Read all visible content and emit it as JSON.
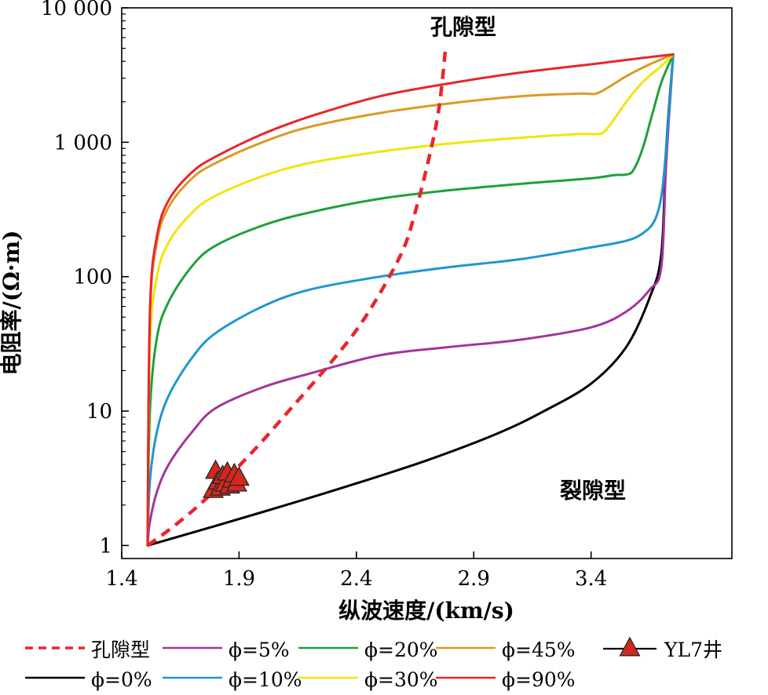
{
  "chart_data": {
    "type": "line",
    "xlabel": "纵波速度/(km/s)",
    "ylabel": "电阻率/(Ω·m)",
    "xlim": [
      1.4,
      4.0
    ],
    "ylim": [
      0.8,
      10000
    ],
    "yscale": "log",
    "xticks": [
      1.4,
      1.9,
      2.4,
      2.9,
      3.4
    ],
    "xtick_labels": [
      "1.4",
      "1.9",
      "2.4",
      "2.9",
      "3.4"
    ],
    "yticks": [
      1,
      10,
      100,
      1000,
      10000
    ],
    "ytick_labels": [
      "1",
      "10",
      "100",
      "1 000",
      "10 000"
    ],
    "annotations": [
      {
        "text": "孔隙型",
        "x": 2.8,
        "y": 6500
      },
      {
        "text": "裂隙型",
        "x": 3.25,
        "y": 3.3
      }
    ],
    "series": [
      {
        "name": "孔隙型",
        "color": "#e8262c",
        "dash": true,
        "x": [
          1.51,
          1.6,
          1.7,
          1.8,
          1.9,
          2.0,
          2.1,
          2.2,
          2.3,
          2.4,
          2.5,
          2.6,
          2.65,
          2.7,
          2.75,
          2.78
        ],
        "y": [
          1,
          1.3,
          1.8,
          2.6,
          3.9,
          6,
          9.5,
          15,
          24,
          40,
          75,
          160,
          300,
          650,
          1700,
          5000
        ]
      },
      {
        "name": "ϕ=0%",
        "color": "#000000",
        "x": [
          1.51,
          1.8,
          2.1,
          2.4,
          2.7,
          3.0,
          3.2,
          3.4,
          3.55,
          3.65,
          3.7,
          3.72,
          3.75
        ],
        "y": [
          1,
          1.4,
          2.0,
          2.9,
          4.3,
          6.8,
          10,
          16,
          30,
          70,
          150,
          900,
          4500
        ]
      },
      {
        "name": "ϕ=5%",
        "color": "#a3359b",
        "x": [
          1.51,
          1.52,
          1.55,
          1.6,
          1.7,
          1.8,
          2.0,
          2.2,
          2.5,
          2.8,
          3.1,
          3.4,
          3.55,
          3.65,
          3.7,
          3.72,
          3.75
        ],
        "y": [
          1,
          1.5,
          2.5,
          4,
          7,
          10.5,
          15,
          19,
          26,
          30,
          34,
          42,
          55,
          80,
          120,
          700,
          4500
        ]
      },
      {
        "name": "ϕ=10%",
        "color": "#1e96d2",
        "x": [
          1.51,
          1.52,
          1.55,
          1.6,
          1.7,
          1.8,
          2.0,
          2.2,
          2.5,
          2.8,
          3.1,
          3.4,
          3.55,
          3.62,
          3.67,
          3.7,
          3.72,
          3.75
        ],
        "y": [
          1,
          3,
          7,
          13,
          25,
          38,
          60,
          80,
          100,
          118,
          135,
          165,
          185,
          210,
          260,
          400,
          900,
          4500
        ]
      },
      {
        "name": "ϕ=20%",
        "color": "#1ea03c",
        "x": [
          1.51,
          1.52,
          1.55,
          1.6,
          1.7,
          1.8,
          2.0,
          2.2,
          2.5,
          2.8,
          3.1,
          3.4,
          3.5,
          3.55,
          3.58,
          3.62,
          3.66,
          3.7,
          3.75
        ],
        "y": [
          1,
          10,
          35,
          65,
          120,
          170,
          240,
          300,
          380,
          440,
          490,
          540,
          570,
          575,
          620,
          900,
          1600,
          2800,
          4500
        ]
      },
      {
        "name": "ϕ=30%",
        "color": "#f0e60a",
        "x": [
          1.51,
          1.52,
          1.55,
          1.6,
          1.7,
          1.8,
          2.0,
          2.2,
          2.5,
          2.8,
          3.1,
          3.35,
          3.43,
          3.46,
          3.5,
          3.55,
          3.62,
          3.7,
          3.75
        ],
        "y": [
          1,
          30,
          100,
          180,
          300,
          400,
          560,
          700,
          850,
          980,
          1080,
          1150,
          1150,
          1220,
          1500,
          2000,
          2800,
          3700,
          4500
        ]
      },
      {
        "name": "ϕ=45%",
        "color": "#d99b23",
        "x": [
          1.51,
          1.52,
          1.55,
          1.6,
          1.7,
          1.8,
          2.0,
          2.2,
          2.5,
          2.8,
          3.1,
          3.35,
          3.42,
          3.48,
          3.55,
          3.65,
          3.75
        ],
        "y": [
          1,
          50,
          180,
          330,
          540,
          700,
          1000,
          1300,
          1650,
          1950,
          2200,
          2300,
          2300,
          2600,
          3100,
          3800,
          4500
        ]
      },
      {
        "name": "ϕ=90%",
        "color": "#e8262c",
        "x": [
          1.51,
          1.52,
          1.55,
          1.6,
          1.7,
          1.8,
          2.0,
          2.2,
          2.5,
          2.8,
          3.1,
          3.4,
          3.6,
          3.75
        ],
        "y": [
          1,
          55,
          200,
          370,
          600,
          780,
          1150,
          1550,
          2200,
          2750,
          3300,
          3800,
          4200,
          4500
        ]
      }
    ],
    "markers": {
      "name": "YL7井",
      "color": "#d7261e",
      "points": [
        {
          "x": 1.79,
          "y": 2.6
        },
        {
          "x": 1.8,
          "y": 3.6
        },
        {
          "x": 1.81,
          "y": 3.0
        },
        {
          "x": 1.82,
          "y": 2.7
        },
        {
          "x": 1.83,
          "y": 3.3
        },
        {
          "x": 1.84,
          "y": 2.9
        },
        {
          "x": 1.85,
          "y": 3.5
        },
        {
          "x": 1.86,
          "y": 2.8
        },
        {
          "x": 1.87,
          "y": 3.1
        },
        {
          "x": 1.88,
          "y": 3.4
        },
        {
          "x": 1.89,
          "y": 2.9
        },
        {
          "x": 1.9,
          "y": 3.2
        }
      ]
    },
    "legend": {
      "placement": "bottom",
      "items": [
        {
          "label": "孔隙型",
          "color": "#e8262c",
          "dash": true
        },
        {
          "label": "ϕ=5%",
          "color": "#a3359b"
        },
        {
          "label": "ϕ=20%",
          "color": "#1ea03c"
        },
        {
          "label": "ϕ=45%",
          "color": "#d99b23"
        },
        {
          "label": "YL7井",
          "color": "#d7261e",
          "marker": "triangle"
        },
        {
          "label": "ϕ=0%",
          "color": "#000000"
        },
        {
          "label": "ϕ=10%",
          "color": "#1e96d2"
        },
        {
          "label": "ϕ=30%",
          "color": "#f0e60a"
        },
        {
          "label": "ϕ=90%",
          "color": "#e8262c"
        }
      ]
    }
  }
}
